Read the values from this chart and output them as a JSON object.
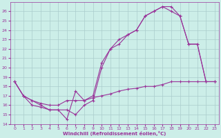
{
  "xlabel": "Windchill (Refroidissement éolien,°C)",
  "xlim": [
    -0.5,
    23.5
  ],
  "ylim": [
    14,
    27
  ],
  "yticks": [
    14,
    15,
    16,
    17,
    18,
    19,
    20,
    21,
    22,
    23,
    24,
    25,
    26
  ],
  "xticks": [
    0,
    1,
    2,
    3,
    4,
    5,
    6,
    7,
    8,
    9,
    10,
    11,
    12,
    13,
    14,
    15,
    16,
    17,
    18,
    19,
    20,
    21,
    22,
    23
  ],
  "background_color": "#cceee8",
  "grid_color": "#aacccc",
  "line_color": "#993399",
  "line1_x": [
    0,
    1,
    2,
    3,
    4,
    5,
    6,
    7,
    8,
    9,
    10,
    11,
    12,
    13,
    14,
    15,
    16,
    17,
    18,
    19,
    20,
    21,
    22,
    23
  ],
  "line1_y": [
    18.5,
    17.0,
    16.5,
    16.0,
    15.5,
    15.5,
    14.5,
    17.5,
    16.5,
    17.0,
    20.5,
    22.0,
    22.5,
    23.5,
    24.0,
    25.5,
    26.0,
    26.5,
    26.0,
    25.5,
    22.5,
    22.5,
    18.5,
    18.5
  ],
  "line2_x": [
    0,
    1,
    2,
    3,
    4,
    5,
    6,
    7,
    8,
    9,
    10,
    11,
    12,
    13,
    14,
    15,
    16,
    17,
    18,
    19,
    20,
    21,
    22,
    23
  ],
  "line2_y": [
    18.5,
    17.0,
    16.0,
    15.8,
    15.5,
    15.5,
    15.5,
    15.0,
    16.0,
    16.5,
    20.0,
    22.0,
    23.0,
    23.5,
    24.0,
    25.5,
    26.0,
    26.5,
    26.5,
    25.5,
    22.5,
    22.5,
    18.5,
    18.5
  ],
  "line3_x": [
    0,
    1,
    2,
    3,
    4,
    5,
    6,
    7,
    8,
    9,
    10,
    11,
    12,
    13,
    14,
    15,
    16,
    17,
    18,
    19,
    20,
    21,
    22,
    23
  ],
  "line3_y": [
    18.5,
    17.0,
    16.5,
    16.2,
    16.0,
    16.0,
    16.5,
    16.5,
    16.5,
    16.8,
    17.0,
    17.2,
    17.5,
    17.7,
    17.8,
    18.0,
    18.0,
    18.2,
    18.5,
    18.5,
    18.5,
    18.5,
    18.5,
    18.5
  ]
}
